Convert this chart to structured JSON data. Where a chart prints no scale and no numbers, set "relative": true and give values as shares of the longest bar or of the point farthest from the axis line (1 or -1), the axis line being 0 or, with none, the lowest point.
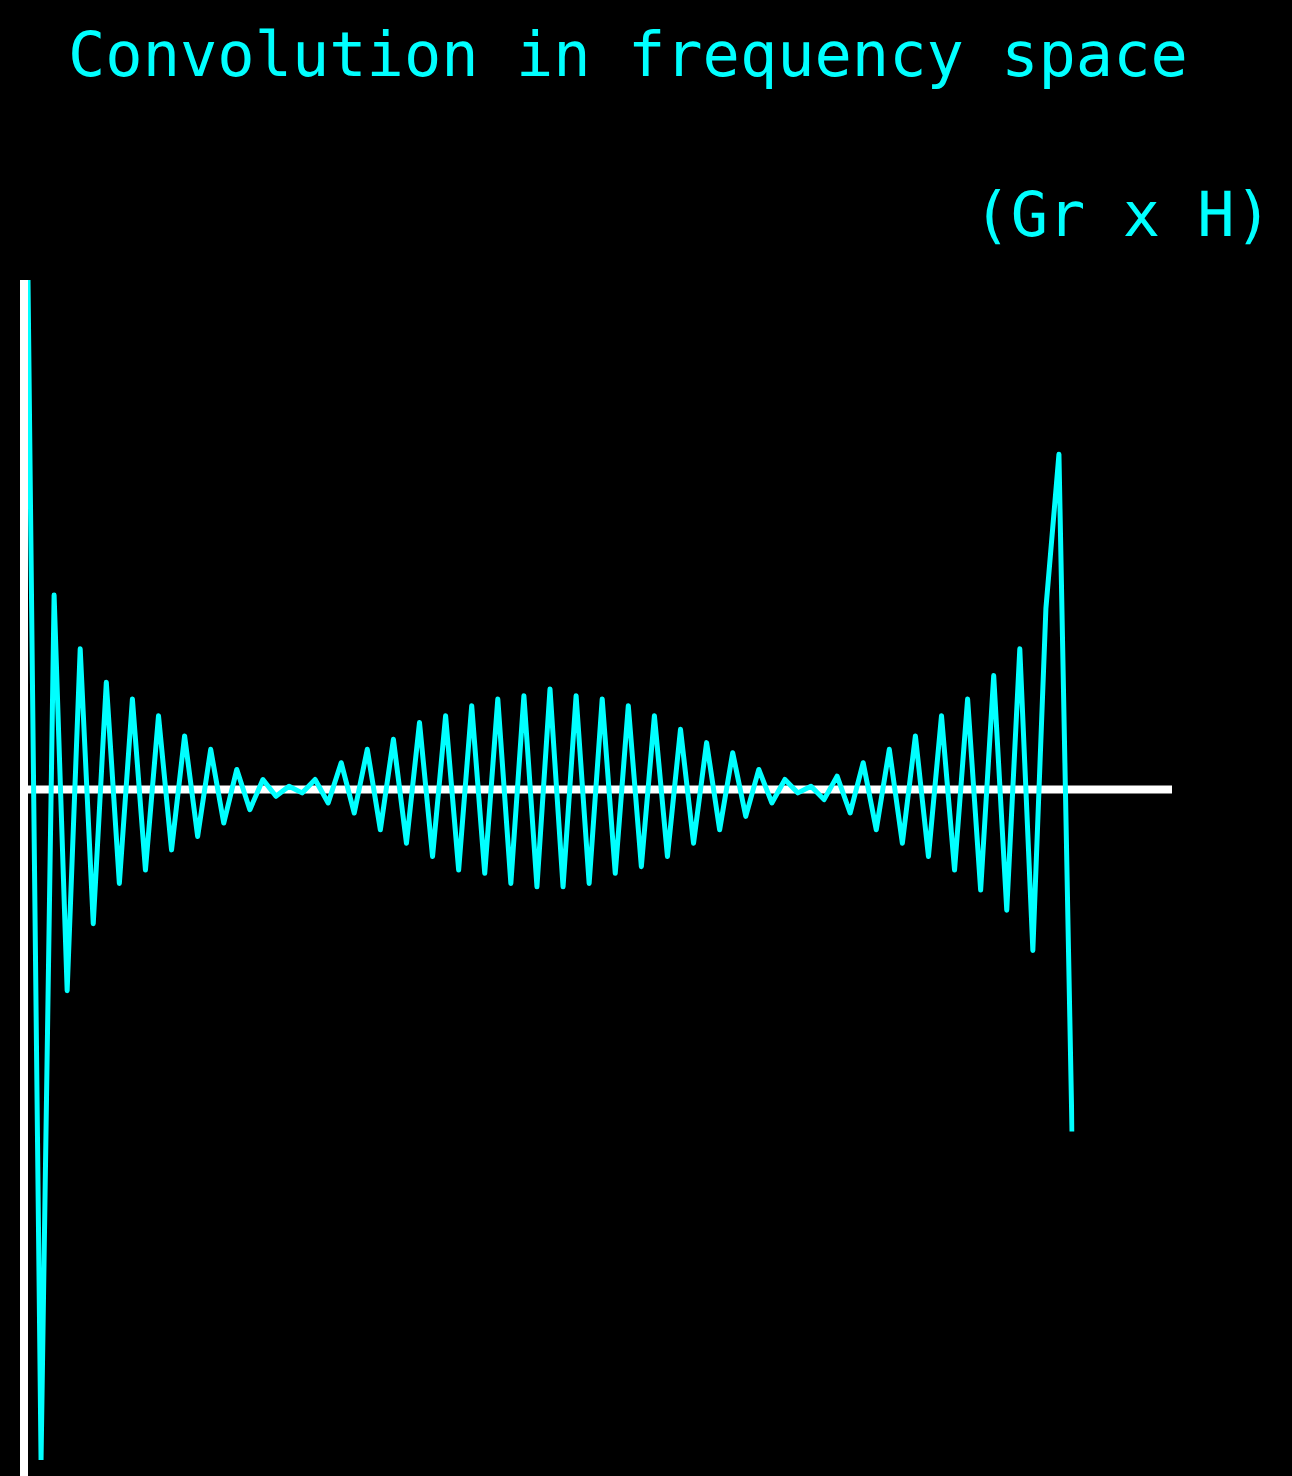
{
  "chart_data": {
    "type": "line",
    "title": "Convolution in frequency space",
    "subtitle": "(Gr x H)",
    "relative": true,
    "legend": false,
    "marker": "none",
    "line_style": "solid",
    "ref_lines": [
      {
        "axis": "y",
        "value": 0,
        "color": "#ffffff"
      }
    ],
    "categories": [
      null,
      null,
      null,
      null,
      null,
      null,
      null,
      null,
      null,
      null,
      null,
      null,
      null,
      null,
      null,
      null,
      null,
      null,
      null,
      null,
      null,
      null,
      null,
      null,
      null,
      null,
      null,
      null,
      null,
      null,
      null,
      null,
      null,
      null,
      null,
      null,
      null,
      null,
      null,
      null,
      null,
      null,
      null,
      null,
      null,
      null,
      null,
      null,
      null,
      null,
      null,
      null,
      null,
      null,
      null,
      null,
      null,
      null,
      null,
      null,
      null,
      null,
      null,
      null,
      null,
      null,
      null,
      null,
      null,
      null,
      null,
      null,
      null,
      null,
      null,
      null,
      null,
      null,
      null,
      null,
      null
    ],
    "series": [
      {
        "color": "#00ffff",
        "values": [
          0.76,
          -1.0,
          0.29,
          -0.3,
          0.21,
          -0.2,
          0.16,
          -0.14,
          0.135,
          -0.12,
          0.11,
          -0.09,
          0.08,
          -0.07,
          0.06,
          -0.05,
          0.03,
          -0.03,
          0.015,
          -0.01,
          0.005,
          -0.005,
          0.015,
          -0.02,
          0.04,
          -0.035,
          0.06,
          -0.06,
          0.075,
          -0.08,
          0.1,
          -0.1,
          0.11,
          -0.12,
          0.125,
          -0.125,
          0.135,
          -0.14,
          0.14,
          -0.145,
          0.15,
          -0.145,
          0.14,
          -0.14,
          0.135,
          -0.125,
          0.125,
          -0.115,
          0.11,
          -0.1,
          0.09,
          -0.08,
          0.07,
          -0.06,
          0.055,
          -0.04,
          0.03,
          -0.02,
          0.015,
          -0.005,
          0.005,
          -0.015,
          0.02,
          -0.035,
          0.04,
          -0.06,
          0.06,
          -0.08,
          0.08,
          -0.1,
          0.11,
          -0.12,
          0.135,
          -0.15,
          0.17,
          -0.18,
          0.21,
          -0.24,
          0.27,
          0.5,
          -0.51
        ]
      }
    ]
  }
}
